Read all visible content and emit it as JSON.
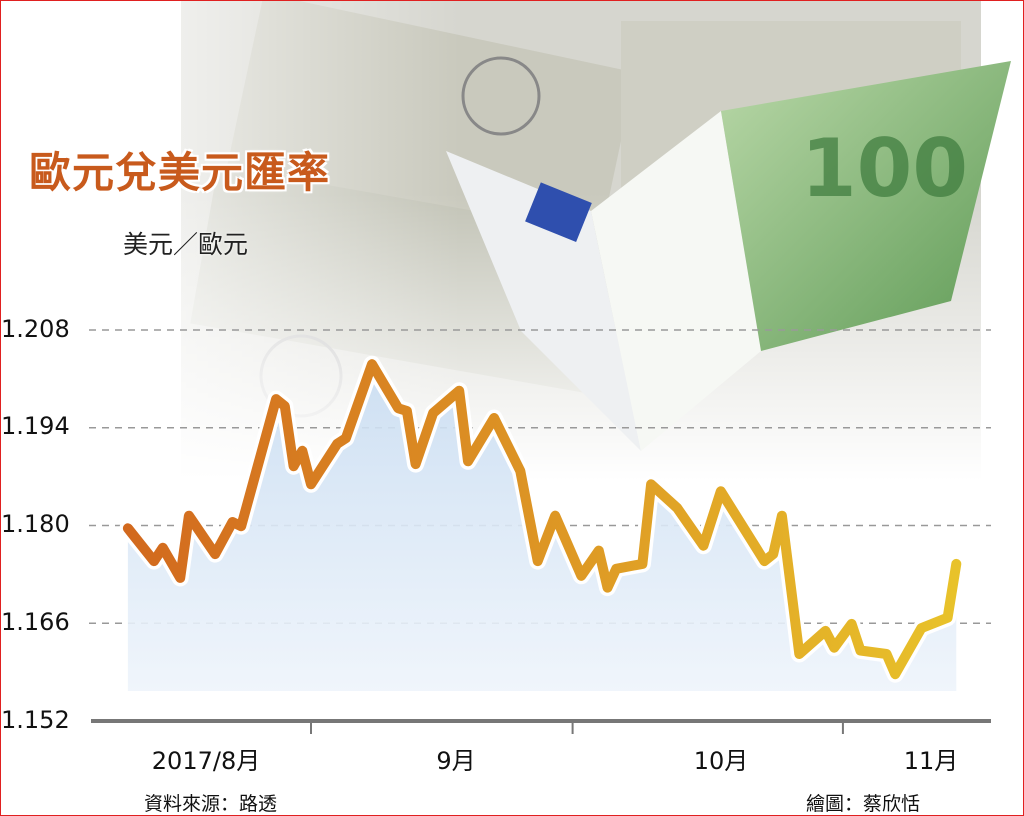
{
  "chart_data": {
    "type": "area",
    "title": "歐元兌美元匯率",
    "ylabel": "美元／歐元",
    "xlabel": "",
    "ylim": [
      1.152,
      1.208
    ],
    "yticks": [
      "1.208",
      "1.194",
      "1.180",
      "1.166",
      "1.152"
    ],
    "xtick_labels": [
      "2017/8月",
      "9月",
      "10月",
      "11月"
    ],
    "grid": "horizontal dashed",
    "series": [
      {
        "points": [
          [
            "2017-08-11",
            1.1796
          ],
          [
            "2017-08-14",
            1.1749
          ],
          [
            "2017-08-15",
            1.1768
          ],
          [
            "2017-08-17",
            1.1725
          ],
          [
            "2017-08-18",
            1.1814
          ],
          [
            "2017-08-21",
            1.1759
          ],
          [
            "2017-08-23",
            1.1805
          ],
          [
            "2017-08-24",
            1.1799
          ],
          [
            "2017-08-28",
            1.1981
          ],
          [
            "2017-08-29",
            1.1971
          ],
          [
            "2017-08-30",
            1.1885
          ],
          [
            "2017-08-31",
            1.1907
          ],
          [
            "2017-09-01",
            1.1859
          ],
          [
            "2017-09-04",
            1.1917
          ],
          [
            "2017-09-05",
            1.1925
          ],
          [
            "2017-09-08",
            1.2031
          ],
          [
            "2017-09-11",
            1.1968
          ],
          [
            "2017-09-12",
            1.1964
          ],
          [
            "2017-09-13",
            1.1888
          ],
          [
            "2017-09-15",
            1.1961
          ],
          [
            "2017-09-18",
            1.1993
          ],
          [
            "2017-09-19",
            1.1892
          ],
          [
            "2017-09-22",
            1.1954
          ],
          [
            "2017-09-25",
            1.1878
          ],
          [
            "2017-09-27",
            1.1749
          ],
          [
            "2017-09-29",
            1.1814
          ],
          [
            "2017-10-02",
            1.1728
          ],
          [
            "2017-10-04",
            1.1764
          ],
          [
            "2017-10-05",
            1.1711
          ],
          [
            "2017-10-06",
            1.1738
          ],
          [
            "2017-10-09",
            1.1745
          ],
          [
            "2017-10-10",
            1.1859
          ],
          [
            "2017-10-13",
            1.1825
          ],
          [
            "2017-10-16",
            1.1771
          ],
          [
            "2017-10-18",
            1.1849
          ],
          [
            "2017-10-23",
            1.1749
          ],
          [
            "2017-10-24",
            1.1759
          ],
          [
            "2017-10-25",
            1.1814
          ],
          [
            "2017-10-27",
            1.1616
          ],
          [
            "2017-10-30",
            1.1649
          ],
          [
            "2017-10-31",
            1.1625
          ],
          [
            "2017-11-02",
            1.1659
          ],
          [
            "2017-11-03",
            1.1621
          ],
          [
            "2017-11-06",
            1.1616
          ],
          [
            "2017-11-07",
            1.1587
          ],
          [
            "2017-11-10",
            1.1653
          ],
          [
            "2017-11-13",
            1.1668
          ],
          [
            "2017-11-14",
            1.1745
          ]
        ]
      }
    ],
    "line_colors": [
      "#d2691e",
      "#e8c22a"
    ],
    "area_color": "#d6e6f6"
  },
  "footer": {
    "source": "資料來源：路透",
    "credit": "繪圖：蔡欣恬"
  },
  "colors": {
    "title": "#c85a1c",
    "border": "#e02020"
  }
}
